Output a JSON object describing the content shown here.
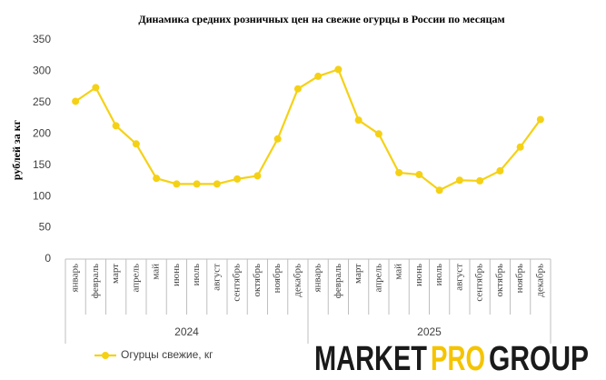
{
  "chart_data": {
    "type": "line",
    "title": "Динамика средних розничных цен на свежие огурцы в России по месяцам",
    "y_label": "рублей за кг",
    "categories": [
      "январь",
      "февраль",
      "март",
      "апрель",
      "май",
      "июнь",
      "июль",
      "август",
      "сентябрь",
      "октябрь",
      "ноябрь",
      "декабрь",
      "январь",
      "февраль",
      "март",
      "апрель",
      "май",
      "июнь",
      "июль",
      "август",
      "сентябрь",
      "октябрь",
      "ноябрь",
      "декабрь"
    ],
    "years": [
      "2024",
      "2025"
    ],
    "series": [
      {
        "name": "Огурцы свежие, кг",
        "color": "#f5d116",
        "values": [
          252,
          274,
          213,
          184,
          129,
          120,
          120,
          120,
          128,
          133,
          192,
          272,
          292,
          303,
          222,
          200,
          138,
          135,
          110,
          126,
          125,
          141,
          179,
          223
        ]
      }
    ],
    "ylim": [
      0,
      350
    ],
    "yticks": [
      0,
      50,
      100,
      150,
      200,
      250,
      300,
      350
    ],
    "grid": false,
    "legend": "bottom-left",
    "watermark": [
      "MARKET",
      "PRO",
      "GROUP"
    ]
  }
}
